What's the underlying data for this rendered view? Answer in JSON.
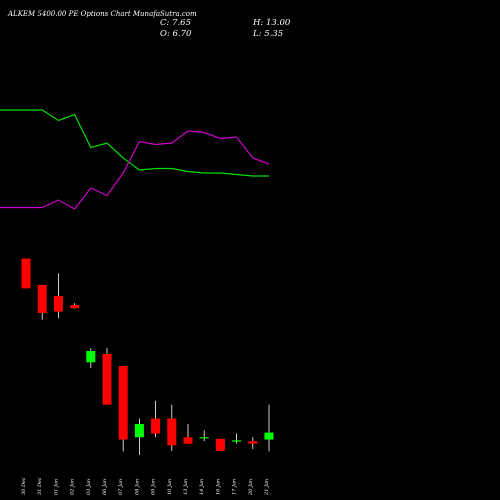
{
  "header": {
    "title": "ALKEM 5400.00 PE Options  Chart MunafaSutra.com",
    "close_label": "C: 7.65",
    "open_label": "O: 6.70",
    "high_label": "H: 13.00",
    "low_label": "L: 5.35"
  },
  "colors": {
    "background": "#000000",
    "up": "#00ff00",
    "down": "#ff0000",
    "wick": "#ffffff",
    "line_green": "#00dd00",
    "line_magenta": "#cc00cc"
  },
  "chart_data": {
    "type": "candlestick",
    "x": [
      "30 Dec",
      "31 Dec",
      "01 Jan",
      "02 Jan",
      "03 Jan",
      "06 Jan",
      "07 Jan",
      "08 Jan",
      "09 Jan",
      "10 Jan",
      "13 Jan",
      "14 Jan",
      "16 Jan",
      "17 Jan",
      "20 Jan",
      "21 Jan"
    ],
    "candles": [
      {
        "date": "30 Dec",
        "open": 208,
        "high": 208,
        "low": 118,
        "close": 118
      },
      {
        "date": "31 Dec",
        "open": 126,
        "high": 126,
        "low": 65,
        "close": 74
      },
      {
        "date": "01 Jan",
        "open": 102,
        "high": 157,
        "low": 67,
        "close": 76
      },
      {
        "date": "02 Jan",
        "open": 86,
        "high": 89,
        "low": 81,
        "close": 81
      },
      {
        "date": "03 Jan",
        "open": 29,
        "high": 38,
        "low": 26,
        "close": 36
      },
      {
        "date": "06 Jan",
        "open": 34,
        "high": 38,
        "low": 13,
        "close": 13
      },
      {
        "date": "07 Jan",
        "open": 27,
        "high": 27,
        "low": 5.35,
        "close": 6.7
      },
      {
        "date": "08 Jan",
        "open": 7,
        "high": 10,
        "low": 5,
        "close": 9
      },
      {
        "date": "09 Jan",
        "open": 10,
        "high": 14,
        "low": 7,
        "close": 7.5
      },
      {
        "date": "10 Jan",
        "open": 10,
        "high": 13,
        "low": 5.4,
        "close": 6
      },
      {
        "date": "13 Jan",
        "open": 7,
        "high": 9,
        "low": 6.2,
        "close": 6.2
      },
      {
        "date": "14 Jan",
        "open": 7,
        "high": 8,
        "low": 6.5,
        "close": 7
      },
      {
        "date": "16 Jan",
        "open": 6.8,
        "high": 6.8,
        "low": 5.4,
        "close": 5.4
      },
      {
        "date": "17 Jan",
        "open": 6.5,
        "high": 7.5,
        "low": 6.2,
        "close": 6.6
      },
      {
        "date": "20 Jan",
        "open": 6.5,
        "high": 7,
        "low": 5.6,
        "close": 6.2
      },
      {
        "date": "21 Jan",
        "open": 6.7,
        "high": 13,
        "low": 5.35,
        "close": 7.65
      }
    ],
    "lines": [
      {
        "color": "#00dd00",
        "values": [
          90,
          90,
          83,
          87,
          65,
          68,
          58,
          50,
          51,
          51,
          49,
          48,
          48,
          47,
          46,
          46
        ]
      },
      {
        "color": "#cc00cc",
        "values": [
          25,
          25,
          30,
          24,
          38,
          33,
          48,
          69,
          67,
          68,
          76,
          75,
          71,
          72,
          58,
          54
        ]
      }
    ],
    "line_scale": [
      0,
      100
    ],
    "price_scale": "log",
    "price_range": [
      5,
      210
    ],
    "grid": false
  }
}
